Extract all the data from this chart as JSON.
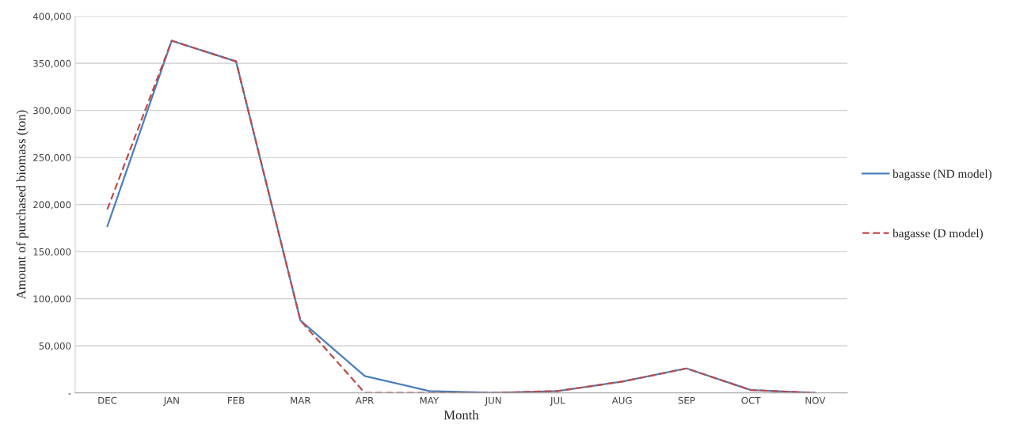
{
  "chart_data": {
    "type": "line",
    "xlabel": "Month",
    "ylabel": "Amount of purchased biomass (ton)",
    "categories": [
      "DEC",
      "JAN",
      "FEB",
      "MAR",
      "APR",
      "MAY",
      "JUN",
      "JUL",
      "AUG",
      "SEP",
      "OCT",
      "NOV"
    ],
    "series": [
      {
        "name": "bagasse (ND model)",
        "color": "#4a7ebb",
        "line_style": "solid",
        "values": [
          177000,
          374000,
          352000,
          77000,
          18000,
          2000,
          0,
          2000,
          12000,
          26000,
          3000,
          0
        ]
      },
      {
        "name": "bagasse (D model)",
        "color": "#be4b48",
        "line_style": "dashed",
        "values": [
          195000,
          374000,
          352000,
          77000,
          0,
          0,
          0,
          2000,
          12000,
          26000,
          3000,
          0
        ]
      }
    ],
    "ylim": [
      0,
      400000
    ],
    "yticks": [
      {
        "value": 0,
        "label": "-"
      },
      {
        "value": 50000,
        "label": "50,000"
      },
      {
        "value": 100000,
        "label": "100,000"
      },
      {
        "value": 150000,
        "label": "150,000"
      },
      {
        "value": 200000,
        "label": "200,000"
      },
      {
        "value": 250000,
        "label": "250,000"
      },
      {
        "value": 300000,
        "label": "300,000"
      },
      {
        "value": 350000,
        "label": "350,000"
      },
      {
        "value": 400000,
        "label": "400,000"
      }
    ],
    "grid": "y",
    "legend": "right",
    "marker": "none"
  }
}
